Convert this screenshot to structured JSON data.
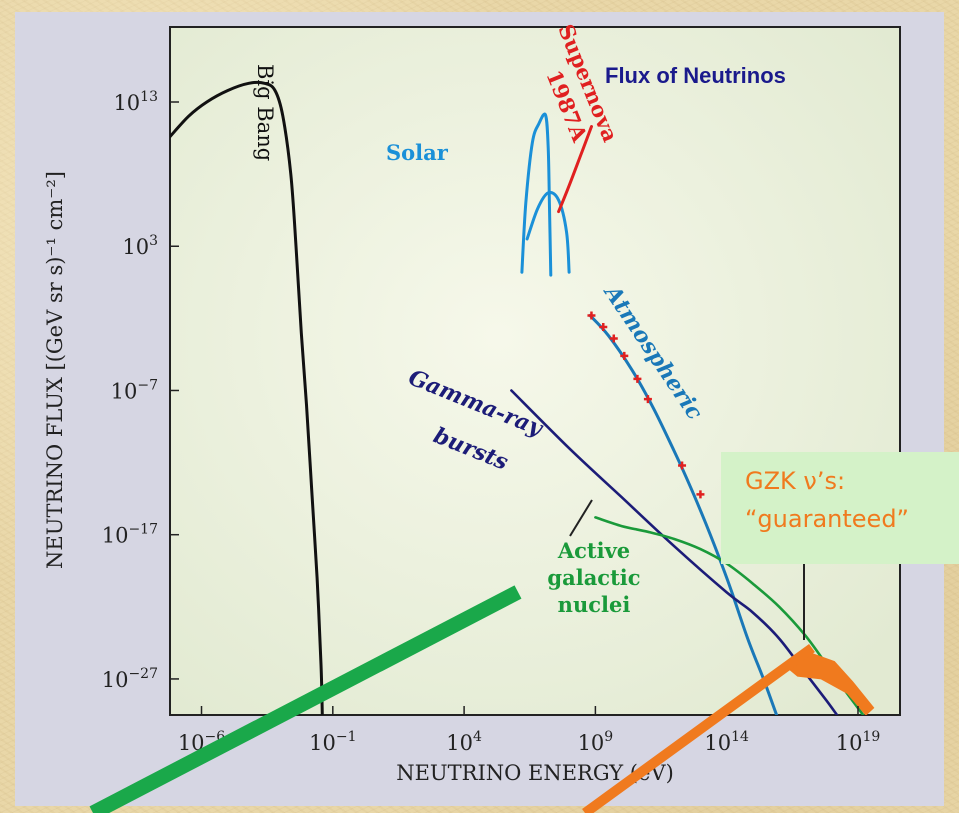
{
  "chart_data": {
    "type": "line",
    "title": "Flux of Neutrinos",
    "xlabel": "NEUTRINO ENERGY (eV)",
    "ylabel": "NEUTRINO FLUX [(GeV sr s)⁻¹ cm⁻²]",
    "x_scale": "log",
    "y_scale": "log",
    "xlim_log10": [
      -7.2,
      20.6
    ],
    "ylim_log10": [
      -29.5,
      18.2
    ],
    "x_ticks": [
      {
        "base": "10",
        "exp": "−6",
        "log10": -6
      },
      {
        "base": "10",
        "exp": "−1",
        "log10": -1
      },
      {
        "base": "10",
        "exp": "4",
        "log10": 4
      },
      {
        "base": "10",
        "exp": "9",
        "log10": 9
      },
      {
        "base": "10",
        "exp": "14",
        "log10": 14
      },
      {
        "base": "10",
        "exp": "19",
        "log10": 19
      }
    ],
    "y_ticks": [
      {
        "base": "10",
        "exp": "13",
        "log10": 13
      },
      {
        "base": "10",
        "exp": "3",
        "log10": 3
      },
      {
        "base": "10",
        "exp": "−7",
        "log10": -7
      },
      {
        "base": "10",
        "exp": "−17",
        "log10": -17
      },
      {
        "base": "10",
        "exp": "−27",
        "log10": -27
      }
    ],
    "series": [
      {
        "name": "Big Bang",
        "color": "#111111",
        "points_log10": [
          [
            -7.2,
            10.6
          ],
          [
            -6.5,
            12.0
          ],
          [
            -5.8,
            13.0
          ],
          [
            -5.0,
            13.8
          ],
          [
            -4.2,
            14.3
          ],
          [
            -3.6,
            14.3
          ],
          [
            -3.2,
            13.8
          ],
          [
            -2.9,
            12.0
          ],
          [
            -2.6,
            8.0
          ],
          [
            -2.4,
            3.0
          ],
          [
            -2.2,
            -3.0
          ],
          [
            -2.0,
            -8.0
          ],
          [
            -1.8,
            -14.0
          ],
          [
            -1.6,
            -20.0
          ],
          [
            -1.45,
            -26.0
          ],
          [
            -1.4,
            -29.5
          ]
        ]
      },
      {
        "name": "Solar",
        "color": "#1a90d8",
        "points_log10": [
          [
            6.2,
            1.2
          ],
          [
            6.35,
            6.0
          ],
          [
            6.6,
            10.2
          ],
          [
            6.85,
            11.5
          ],
          [
            7.1,
            12.1
          ],
          [
            7.2,
            10.0
          ],
          [
            7.25,
            6.0
          ],
          [
            7.3,
            1.0
          ]
        ]
      },
      {
        "name": "Solar",
        "color": "#1a90d8",
        "points_log10": [
          [
            6.4,
            3.5
          ],
          [
            6.8,
            5.6
          ],
          [
            7.2,
            6.7
          ],
          [
            7.6,
            6.2
          ],
          [
            7.9,
            4.0
          ],
          [
            8.0,
            1.2
          ]
        ]
      },
      {
        "name": "Supernova 1987A",
        "color": "#e02020",
        "points_log10": [
          [
            7.6,
            5.4
          ],
          [
            8.0,
            7.2
          ],
          [
            8.5,
            9.6
          ],
          [
            8.85,
            11.3
          ]
        ]
      },
      {
        "name": "Atmospheric",
        "color": "#1a78b8",
        "points_log10": [
          [
            8.8,
            -1.8
          ],
          [
            9.5,
            -3.2
          ],
          [
            10.4,
            -5.6
          ],
          [
            11.2,
            -8.2
          ],
          [
            12.0,
            -11.2
          ],
          [
            12.6,
            -13.6
          ],
          [
            13.2,
            -16.2
          ],
          [
            13.8,
            -19.0
          ],
          [
            14.2,
            -21.0
          ],
          [
            14.8,
            -24.2
          ],
          [
            15.4,
            -27.0
          ],
          [
            15.9,
            -29.5
          ]
        ]
      },
      {
        "name": "Gamma-ray bursts",
        "color": "#1c1c78",
        "points_log10": [
          [
            5.8,
            -7.0
          ],
          [
            8.0,
            -11.0
          ],
          [
            10.0,
            -14.4
          ],
          [
            12.0,
            -17.8
          ],
          [
            14.0,
            -21.0
          ],
          [
            15.0,
            -22.4
          ],
          [
            16.0,
            -24.2
          ],
          [
            17.0,
            -26.6
          ],
          [
            17.8,
            -28.5
          ],
          [
            18.2,
            -29.5
          ]
        ]
      },
      {
        "name": "Active galactic nuclei",
        "color": "#1a9a3a",
        "points_log10": [
          [
            9.0,
            -15.8
          ],
          [
            10.0,
            -16.4
          ],
          [
            11.0,
            -16.8
          ],
          [
            12.0,
            -17.3
          ],
          [
            13.0,
            -18.0
          ],
          [
            14.0,
            -19.0
          ],
          [
            15.0,
            -20.4
          ],
          [
            16.0,
            -22.0
          ],
          [
            17.0,
            -24.0
          ],
          [
            17.8,
            -26.0
          ],
          [
            18.5,
            -27.8
          ],
          [
            19.2,
            -29.5
          ]
        ]
      },
      {
        "name": "GZK",
        "color": "#f07a1e",
        "band_log10": [
          [
            16.3,
            -26.2
          ],
          [
            17.2,
            -25.2
          ],
          [
            18.1,
            -25.8
          ],
          [
            18.8,
            -27.2
          ],
          [
            19.6,
            -29.0
          ],
          [
            19.3,
            -29.5
          ],
          [
            18.6,
            -28.0
          ],
          [
            17.6,
            -27.0
          ],
          [
            16.7,
            -26.8
          ]
        ]
      }
    ],
    "data_markers_log10": [
      [
        8.85,
        -1.8
      ],
      [
        9.3,
        -2.6
      ],
      [
        9.7,
        -3.4
      ],
      [
        10.1,
        -4.6
      ],
      [
        10.6,
        -6.2
      ],
      [
        11.0,
        -7.6
      ],
      [
        12.3,
        -12.2
      ],
      [
        13.0,
        -14.2
      ]
    ],
    "annotations": {
      "big_bang": "Big Bang",
      "solar": "Solar",
      "supernova": "Supernova",
      "supernova_year": "1987A",
      "atmospheric": "Atmospheric",
      "gamma_ray": "Gamma-ray",
      "bursts": "bursts",
      "agn_line1": "Active",
      "agn_line2": "galactic",
      "agn_line3": "nuclei"
    },
    "grid": false
  },
  "gzk_box": {
    "line1": "GZK  ν’s:",
    "line2": "“guaranteed”"
  },
  "colors": {
    "green_arrow": "#1aa84a",
    "orange_arrow": "#f07a1e",
    "plot_background": "#edf2df",
    "title": "#1a1a8c"
  }
}
